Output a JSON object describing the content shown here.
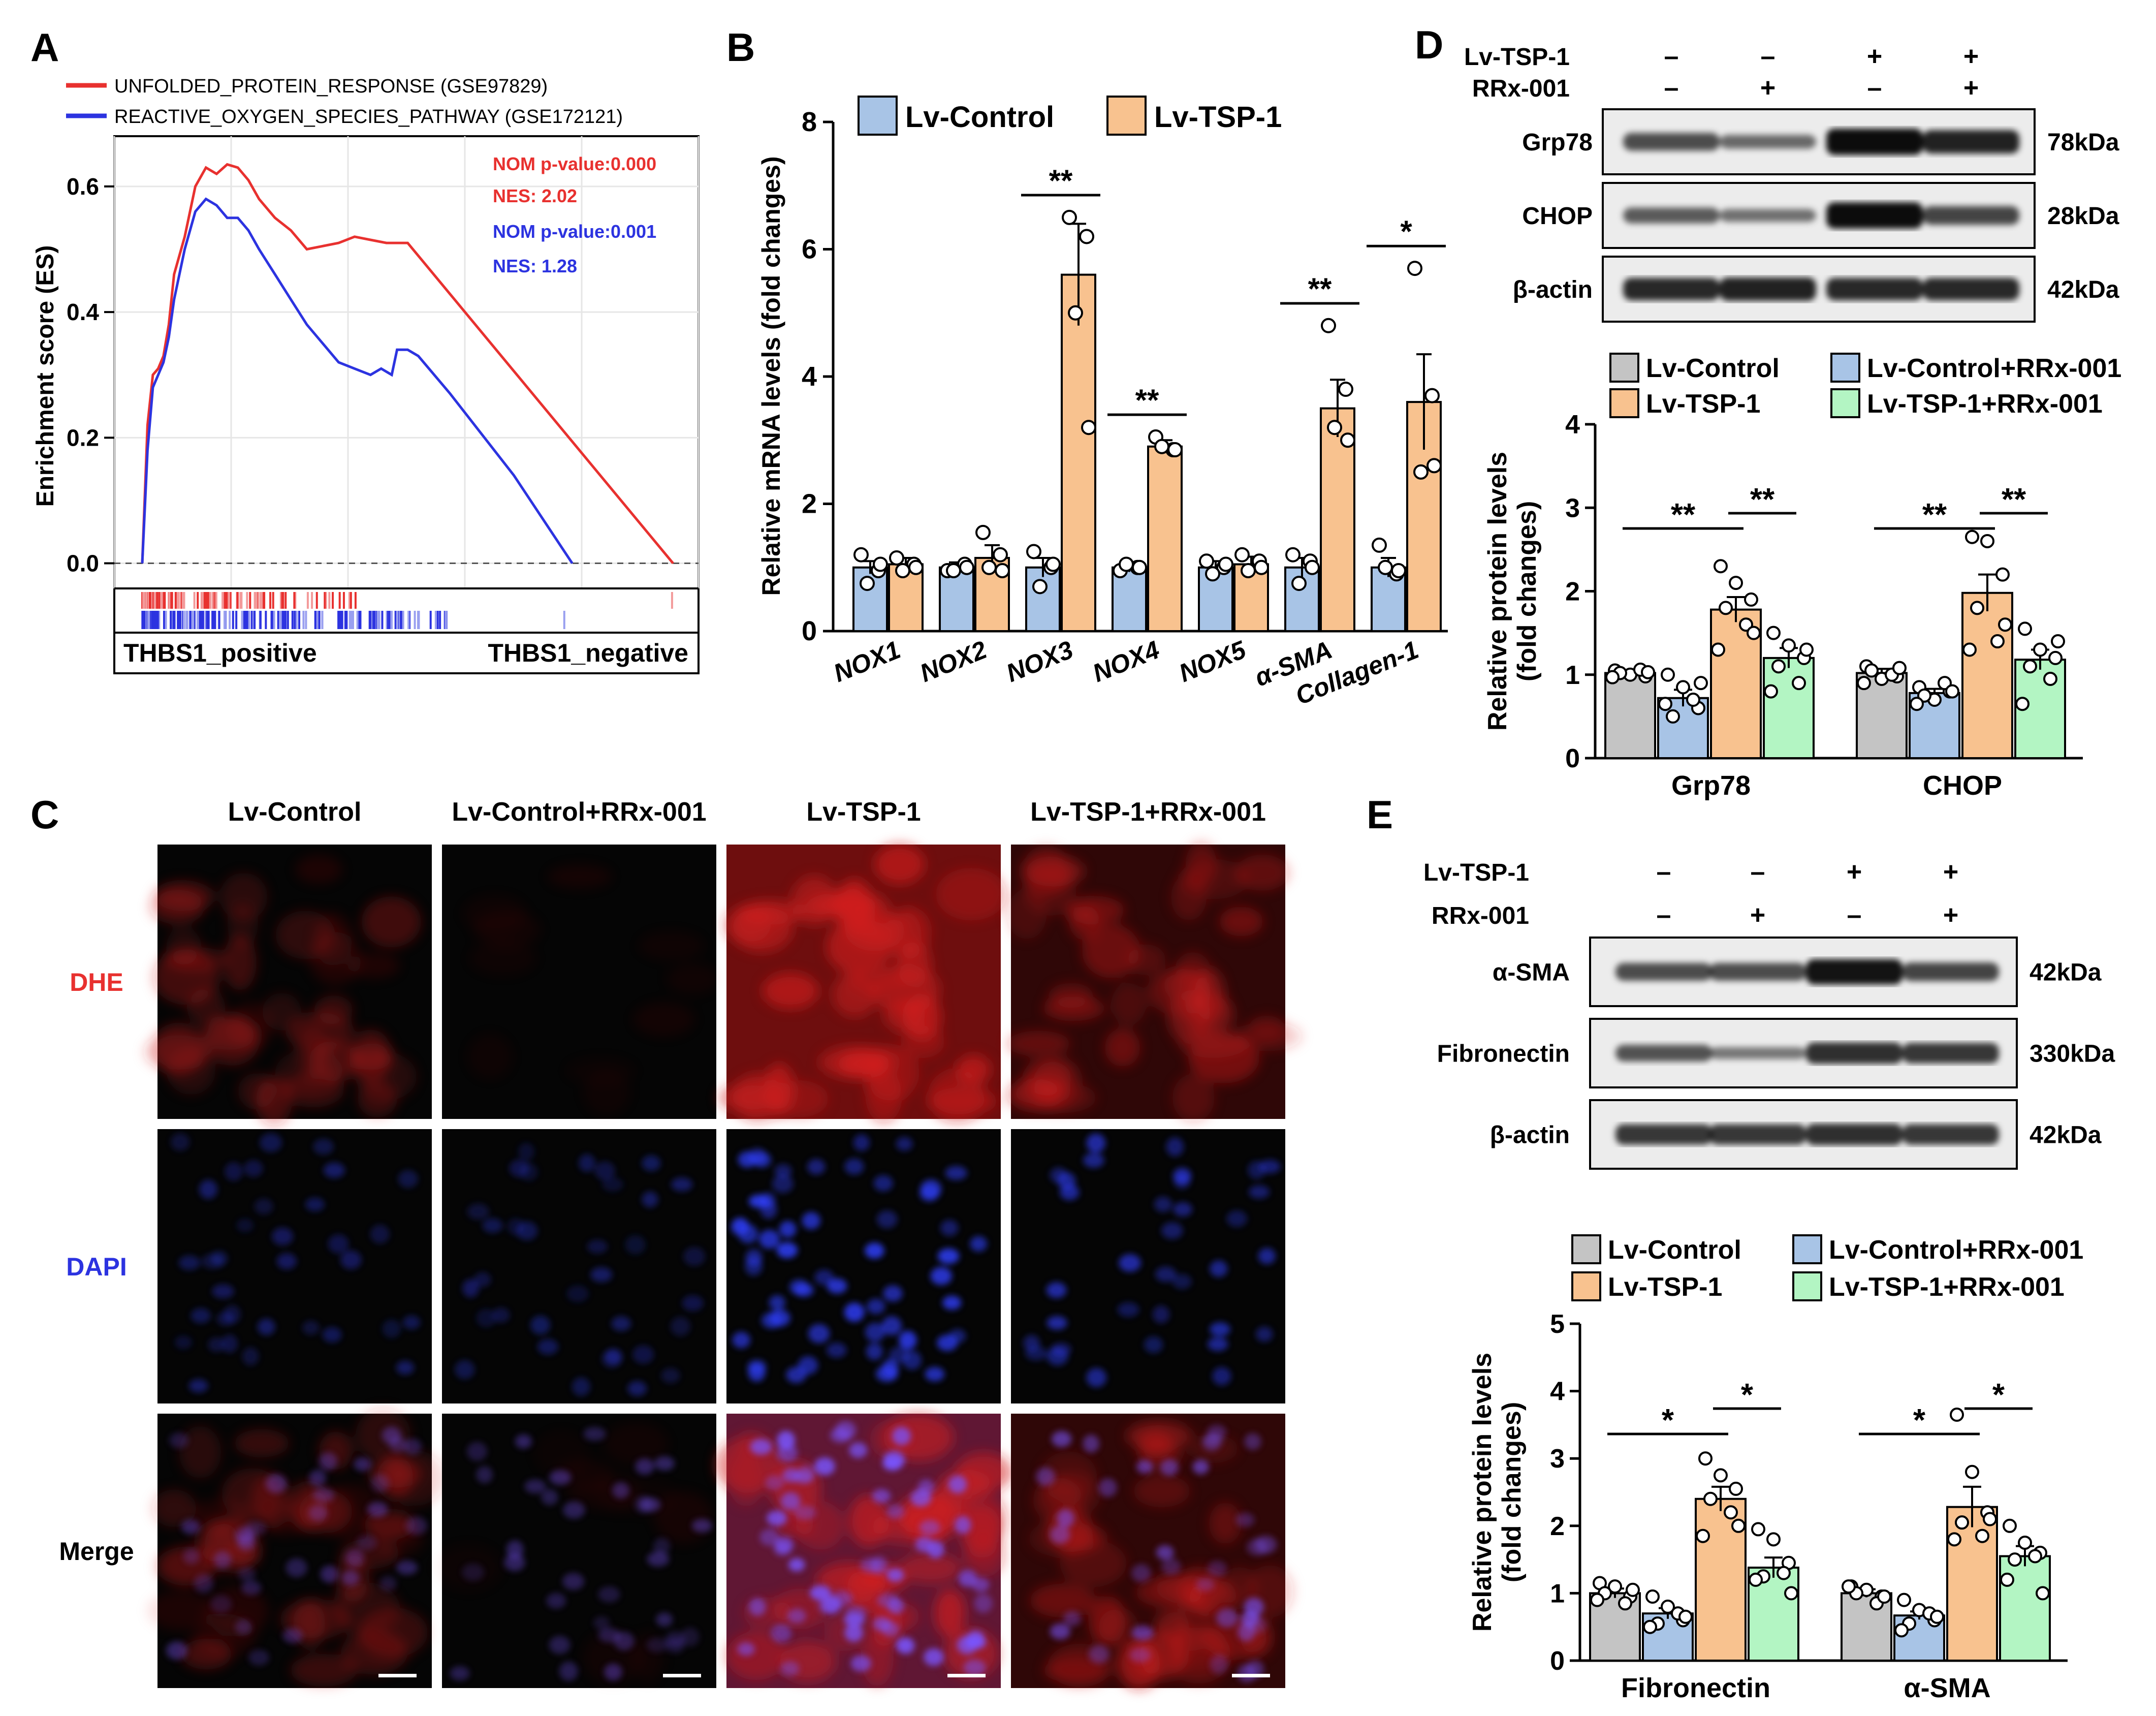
{
  "panels": {
    "a": "A",
    "b": "B",
    "c": "C",
    "d": "D",
    "e": "E"
  },
  "colors": {
    "red": "#e8312f",
    "blue": "#2c33e0",
    "lvcontrol": "#a8c4e6",
    "lvtsp": "#f8c28f",
    "gray": "#c4c4c4",
    "green": "#b3f5c3"
  },
  "chart_data": [
    {
      "id": "A",
      "type": "line",
      "title": "",
      "legend": [
        "UNFOLDED_PROTEIN_RESPONSE (GSE97829)",
        "REACTIVE_OXYGEN_SPECIES_PATHWAY (GSE172121)"
      ],
      "stats": [
        "NOM p-value:0.000",
        "NES: 2.02",
        "NOM p-value:0.001",
        "NES: 1.28"
      ],
      "ylabel": "Enrichment score (ES)",
      "ylim": [
        -0.04,
        0.68
      ],
      "yticks": [
        "0.0",
        "0.2",
        "0.4",
        "0.6"
      ],
      "xlim": [
        0,
        100
      ],
      "xlabels": [
        "THBS1_positive",
        "THBS1_negative"
      ],
      "series": [
        {
          "name": "UNFOLDED_PROTEIN_RESPONSE (GSE97829)",
          "x": [
            0,
            1,
            2,
            3,
            4,
            5,
            6,
            8,
            10,
            12,
            14,
            16,
            18,
            20,
            22,
            25,
            28,
            31,
            34,
            37,
            40,
            43,
            46,
            50,
            100
          ],
          "y": [
            0,
            0.22,
            0.3,
            0.31,
            0.33,
            0.38,
            0.46,
            0.52,
            0.6,
            0.63,
            0.62,
            0.635,
            0.63,
            0.61,
            0.58,
            0.55,
            0.53,
            0.5,
            0.505,
            0.51,
            0.52,
            0.515,
            0.51,
            0.51,
            0
          ]
        },
        {
          "name": "REACTIVE_OXYGEN_SPECIES_PATHWAY (GSE172121)",
          "x": [
            0,
            1,
            2,
            3,
            4,
            5,
            6,
            8,
            10,
            12,
            14,
            16,
            18,
            20,
            22,
            25,
            28,
            31,
            34,
            37,
            40,
            43,
            45,
            47,
            48,
            50,
            52,
            55,
            58,
            70,
            81
          ],
          "y": [
            0,
            0.18,
            0.28,
            0.3,
            0.32,
            0.36,
            0.42,
            0.5,
            0.56,
            0.58,
            0.57,
            0.55,
            0.55,
            0.53,
            0.5,
            0.46,
            0.42,
            0.38,
            0.35,
            0.32,
            0.31,
            0.3,
            0.31,
            0.3,
            0.34,
            0.34,
            0.33,
            0.3,
            0.27,
            0.14,
            0
          ]
        }
      ]
    },
    {
      "id": "B",
      "type": "bar",
      "title": "",
      "ylabel": "Relative mRNA levels  (fold changes)",
      "ylim": [
        0,
        8
      ],
      "yticks": [
        "0",
        "2",
        "4",
        "6",
        "8"
      ],
      "categories": [
        "NOX1",
        "NOX2",
        "NOX3",
        "NOX4",
        "NOX5",
        "α-SMA",
        "Collagen-1"
      ],
      "series": [
        {
          "name": "Lv-Control",
          "values": [
            1.0,
            1.0,
            1.0,
            1.0,
            1.0,
            1.0,
            1.0
          ],
          "errors": [
            0.1,
            0.08,
            0.15,
            0.07,
            0.1,
            0.15,
            0.15
          ],
          "points": [
            [
              1.2,
              0.95,
              0.75,
              1.05
            ],
            [
              0.95,
              1.05,
              0.95,
              1.0
            ],
            [
              1.25,
              1.0,
              0.7,
              1.05
            ],
            [
              0.95,
              1.0,
              1.05,
              1.0
            ],
            [
              1.1,
              1.0,
              0.9,
              1.05
            ],
            [
              1.2,
              1.1,
              0.75,
              1.0
            ],
            [
              1.35,
              0.9,
              1.0,
              0.95
            ]
          ]
        },
        {
          "name": "Lv-TSP-1",
          "values": [
            1.05,
            1.15,
            5.6,
            2.9,
            1.05,
            3.5,
            3.6
          ],
          "errors": [
            0.1,
            0.2,
            0.8,
            0.1,
            0.12,
            0.45,
            0.75
          ],
          "points": [
            [
              1.15,
              1.05,
              0.95,
              1.0
            ],
            [
              1.55,
              1.2,
              1.0,
              0.95
            ],
            [
              6.5,
              6.2,
              5.0,
              3.2
            ],
            [
              3.05,
              2.85,
              2.9,
              2.85
            ],
            [
              1.2,
              1.1,
              0.95,
              1.0
            ],
            [
              4.8,
              3.8,
              3.2,
              3.0
            ],
            [
              5.7,
              3.7,
              2.5,
              2.6
            ]
          ]
        }
      ],
      "significance": [
        "",
        "",
        "**",
        "**",
        "",
        "**",
        "*"
      ]
    },
    {
      "id": "D",
      "type": "bar",
      "title": "",
      "ylabel": [
        "Relative protein levels",
        "(fold changes)"
      ],
      "ylim": [
        0,
        4
      ],
      "yticks": [
        "0",
        "1",
        "2",
        "3",
        "4"
      ],
      "legend": [
        "Lv-Control",
        "Lv-TSP-1",
        "Lv-Control+RRx-001",
        "Lv-TSP-1+RRx-001"
      ],
      "categories": [
        "Grp78",
        "CHOP"
      ],
      "series": [
        {
          "name": "Lv-Control",
          "values": [
            1.02,
            1.02
          ],
          "errors": [
            0.03,
            0.05
          ],
          "points": [
            [
              1.05,
              1.0,
              0.98,
              1.02,
              1.06,
              0.97,
              1.03
            ],
            [
              1.1,
              0.95,
              0.98,
              1.05,
              1.0,
              0.9,
              1.08
            ]
          ]
        },
        {
          "name": "Lv-Control+RRx-001",
          "values": [
            0.72,
            0.78
          ],
          "errors": [
            0.1,
            0.05
          ],
          "points": [
            [
              1.0,
              0.85,
              0.6,
              0.5,
              0.7,
              0.65,
              0.9
            ],
            [
              0.85,
              0.7,
              0.8,
              0.75,
              0.9,
              0.65,
              0.8
            ]
          ]
        },
        {
          "name": "Lv-TSP-1",
          "values": [
            1.78,
            1.98
          ],
          "errors": [
            0.15,
            0.22
          ],
          "points": [
            [
              2.3,
              2.1,
              1.9,
              1.8,
              1.6,
              1.3,
              1.5
            ],
            [
              2.65,
              2.6,
              2.2,
              1.8,
              1.4,
              1.3,
              1.6
            ]
          ]
        },
        {
          "name": "Lv-TSP-1+RRx-001",
          "values": [
            1.2,
            1.18
          ],
          "errors": [
            0.12,
            0.12
          ],
          "points": [
            [
              1.5,
              1.35,
              1.2,
              1.1,
              0.9,
              0.8,
              1.3
            ],
            [
              1.55,
              1.3,
              1.2,
              1.1,
              0.95,
              0.65,
              1.4
            ]
          ]
        }
      ],
      "brackets": [
        {
          "category": 0,
          "from": 0,
          "to": 2,
          "label": "**"
        },
        {
          "category": 0,
          "from": 2,
          "to": 3,
          "label": "**"
        },
        {
          "category": 1,
          "from": 0,
          "to": 2,
          "label": "**"
        },
        {
          "category": 1,
          "from": 2,
          "to": 3,
          "label": "**"
        }
      ]
    },
    {
      "id": "E",
      "type": "bar",
      "title": "",
      "ylabel": [
        "Relative protein levels",
        "(fold changes)"
      ],
      "ylim": [
        0,
        5
      ],
      "yticks": [
        "0",
        "1",
        "2",
        "3",
        "4",
        "5"
      ],
      "legend": [
        "Lv-Control",
        "Lv-TSP-1",
        "Lv-Control+RRx-001",
        "Lv-TSP-1+RRx-001"
      ],
      "categories": [
        "Fibronectin",
        "α-SMA"
      ],
      "series": [
        {
          "name": "Lv-Control",
          "values": [
            1.0,
            1.0
          ],
          "errors": [
            0.07,
            0.06
          ],
          "points": [
            [
              1.15,
              1.1,
              0.95,
              1.0,
              0.85,
              0.9,
              1.05
            ],
            [
              1.1,
              1.05,
              0.95,
              1.0,
              0.85,
              1.1,
              0.95
            ]
          ]
        },
        {
          "name": "Lv-Control+RRx-001",
          "values": [
            0.7,
            0.67
          ],
          "errors": [
            0.08,
            0.06
          ],
          "points": [
            [
              0.95,
              0.8,
              0.6,
              0.55,
              0.7,
              0.5,
              0.65
            ],
            [
              0.9,
              0.75,
              0.6,
              0.55,
              0.7,
              0.45,
              0.65
            ]
          ]
        },
        {
          "name": "Lv-TSP-1",
          "values": [
            2.4,
            2.28
          ],
          "errors": [
            0.18,
            0.3
          ],
          "points": [
            [
              3.0,
              2.75,
              2.55,
              2.4,
              2.2,
              1.85,
              2.0
            ],
            [
              3.65,
              2.8,
              2.2,
              2.05,
              1.85,
              1.8,
              2.1
            ]
          ]
        },
        {
          "name": "Lv-TSP-1+RRx-001",
          "values": [
            1.38,
            1.55
          ],
          "errors": [
            0.15,
            0.15
          ],
          "points": [
            [
              1.95,
              1.8,
              1.45,
              1.25,
              1.3,
              1.2,
              1.0
            ],
            [
              2.0,
              1.75,
              1.6,
              1.5,
              1.55,
              1.2,
              1.0
            ]
          ]
        }
      ],
      "brackets": [
        {
          "category": 0,
          "from": 0,
          "to": 2,
          "label": "*"
        },
        {
          "category": 0,
          "from": 2,
          "to": 3,
          "label": "*"
        },
        {
          "category": 1,
          "from": 0,
          "to": 2,
          "label": "*"
        },
        {
          "category": 1,
          "from": 2,
          "to": 3,
          "label": "*"
        }
      ]
    }
  ],
  "panel_c": {
    "columns": [
      "Lv-Control",
      "Lv-Control+RRx-001",
      "Lv-TSP-1",
      "Lv-TSP-1+RRx-001"
    ],
    "rows": [
      "DHE",
      "DAPI",
      "Merge"
    ],
    "row_colors": [
      "#e8312f",
      "#2c33e0",
      "#000000"
    ]
  },
  "blot_d": {
    "conditions": [
      {
        "label": "Lv-TSP-1",
        "signs": [
          "–",
          "–",
          "+",
          "+"
        ]
      },
      {
        "label": "RRx-001",
        "signs": [
          "–",
          "+",
          "–",
          "+"
        ]
      }
    ],
    "bands": [
      {
        "name": "Grp78",
        "kda": "78kDa",
        "intensity": [
          0.55,
          0.35,
          1.0,
          0.85
        ]
      },
      {
        "name": "CHOP",
        "kda": "28kDa",
        "intensity": [
          0.45,
          0.3,
          1.0,
          0.6
        ]
      },
      {
        "name": "β-actin",
        "kda": "42kDa",
        "intensity": [
          0.8,
          0.85,
          0.8,
          0.8
        ]
      }
    ]
  },
  "blot_e": {
    "conditions": [
      {
        "label": "Lv-TSP-1",
        "signs": [
          "–",
          "–",
          "+",
          "+"
        ]
      },
      {
        "label": "RRx-001",
        "signs": [
          "–",
          "+",
          "–",
          "+"
        ]
      }
    ],
    "bands": [
      {
        "name": "α-SMA",
        "kda": "42kDa",
        "intensity": [
          0.55,
          0.55,
          0.95,
          0.6
        ]
      },
      {
        "name": "Fibronectin",
        "kda": "330kDa",
        "intensity": [
          0.5,
          0.25,
          0.75,
          0.7
        ]
      },
      {
        "name": "β-actin",
        "kda": "42kDa",
        "intensity": [
          0.7,
          0.7,
          0.75,
          0.7
        ]
      }
    ]
  }
}
